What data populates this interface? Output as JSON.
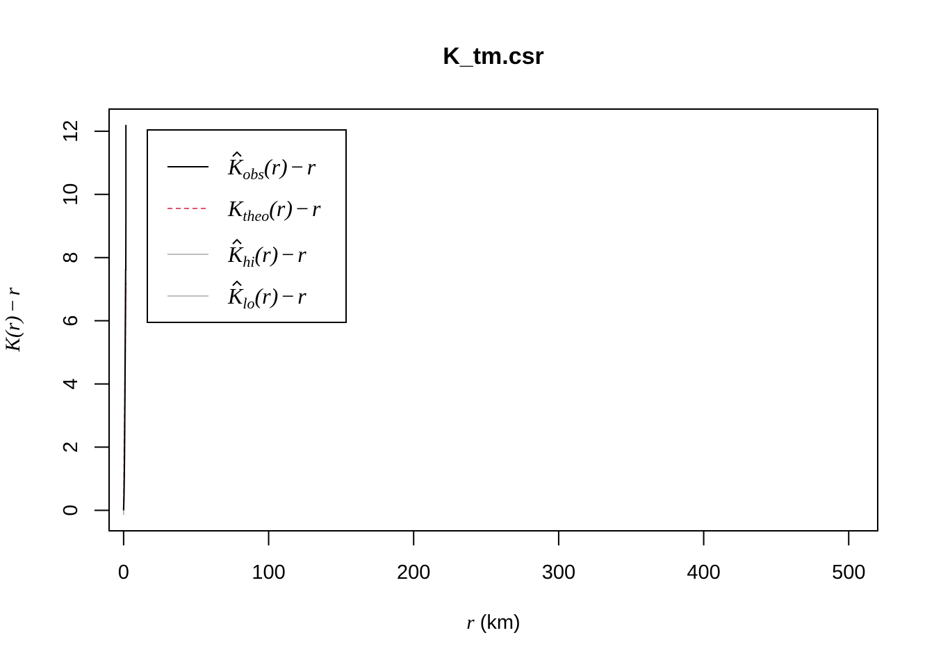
{
  "chart_data": {
    "type": "line",
    "title": "K_tm.csr",
    "xlabel": {
      "var": "r",
      "unit": "(km)"
    },
    "ylabel": {
      "main": "K",
      "arg": "(r)",
      "minus": "−",
      "var": "r"
    },
    "xlim": [
      -10,
      520
    ],
    "ylim": [
      -0.65,
      12.7
    ],
    "x_ticks": [
      0,
      100,
      200,
      300,
      400,
      500
    ],
    "y_ticks": [
      0,
      2,
      4,
      6,
      8,
      10,
      12
    ],
    "grid": false,
    "legend_position": "top-left",
    "series": [
      {
        "key": "obs",
        "color": "#000000",
        "dash": "solid",
        "x": [
          0,
          0.3,
          0.6,
          0.9,
          1.2,
          1.4,
          1.5,
          1.6,
          1.6,
          1.6
        ],
        "y": [
          0,
          0.5,
          1.5,
          3.5,
          6.0,
          7.6,
          7.6,
          9.5,
          11.0,
          12.2
        ]
      },
      {
        "key": "theo",
        "color": "#DF536B",
        "dash": "dashed",
        "x": [
          0,
          1.6
        ],
        "y": [
          0,
          7.2
        ]
      },
      {
        "key": "hi",
        "color": "#bebebe",
        "dash": "solid",
        "x": [
          0,
          0.4,
          0.8,
          1.2,
          1.6
        ],
        "y": [
          -0.1,
          1.5,
          3.5,
          5.5,
          7.3
        ]
      },
      {
        "key": "lo",
        "color": "#bebebe",
        "dash": "solid",
        "x": [
          0,
          0.4,
          0.8,
          1.2,
          1.6
        ],
        "y": [
          -0.15,
          1.2,
          3.0,
          5.0,
          7.0
        ]
      }
    ],
    "legend": [
      {
        "key": "obs",
        "hat": true,
        "base": "K",
        "sub": "obs",
        "tail": "(r)",
        "minus": "−",
        "var": "r",
        "color": "#000000",
        "dash": "solid"
      },
      {
        "key": "theo",
        "hat": false,
        "base": "K",
        "sub": "theo",
        "tail": "(r)",
        "minus": "−",
        "var": "r",
        "color": "#DF536B",
        "dash": "dashed"
      },
      {
        "key": "hi",
        "hat": true,
        "base": "K",
        "sub": "hi",
        "tail": "(r)",
        "minus": "−",
        "var": "r",
        "color": "#bebebe",
        "dash": "solid"
      },
      {
        "key": "lo",
        "hat": true,
        "base": "K",
        "sub": "lo",
        "tail": "(r)",
        "minus": "−",
        "var": "r",
        "color": "#bebebe",
        "dash": "solid"
      }
    ]
  }
}
